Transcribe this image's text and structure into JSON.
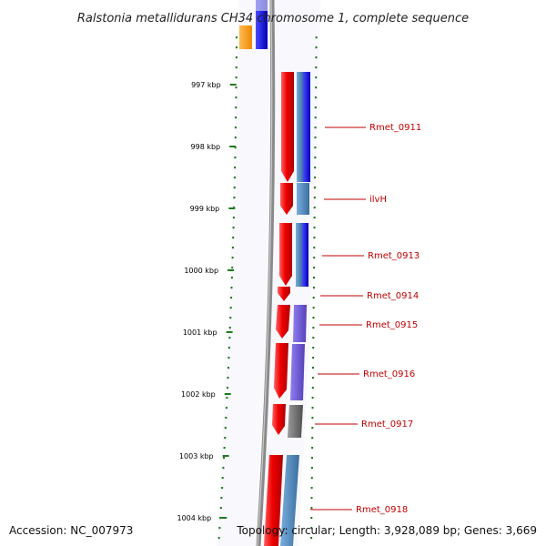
{
  "title": "Ralstonia metallidurans CH34 chromosome 1, complete sequence",
  "accession": "Accession: NC_007973",
  "topology": "Topology: circular; Length: 3,928,089 bp; Genes: 3,669",
  "ruler_ticks": [
    {
      "label": "997 kbp",
      "kbp": 997
    },
    {
      "label": "998 kbp",
      "kbp": 998
    },
    {
      "label": "999 kbp",
      "kbp": 999
    },
    {
      "label": "1000 kbp",
      "kbp": 1000
    },
    {
      "label": "1001 kbp",
      "kbp": 1001
    },
    {
      "label": "1002 kbp",
      "kbp": 1002
    },
    {
      "label": "1003 kbp",
      "kbp": 1003
    },
    {
      "label": "1004 kbp",
      "kbp": 1004
    }
  ],
  "genes": [
    {
      "label": "Rmet_0911"
    },
    {
      "label": "ilvH"
    },
    {
      "label": "Rmet_0913"
    },
    {
      "label": "Rmet_0914"
    },
    {
      "label": "Rmet_0915"
    },
    {
      "label": "Rmet_0916"
    },
    {
      "label": "Rmet_0917"
    },
    {
      "label": "Rmet_0918"
    }
  ],
  "colors": {
    "cds_forward": "#ee0000",
    "blue": "#1a1aee",
    "steel_blue": "#4a86b8",
    "purple": "#6a55cc",
    "gray": "#6a6a6a",
    "orange": "#ff9a1a",
    "tick_green": "#1f7a1f",
    "backbone": "#808080",
    "label_red": "#c00000"
  }
}
